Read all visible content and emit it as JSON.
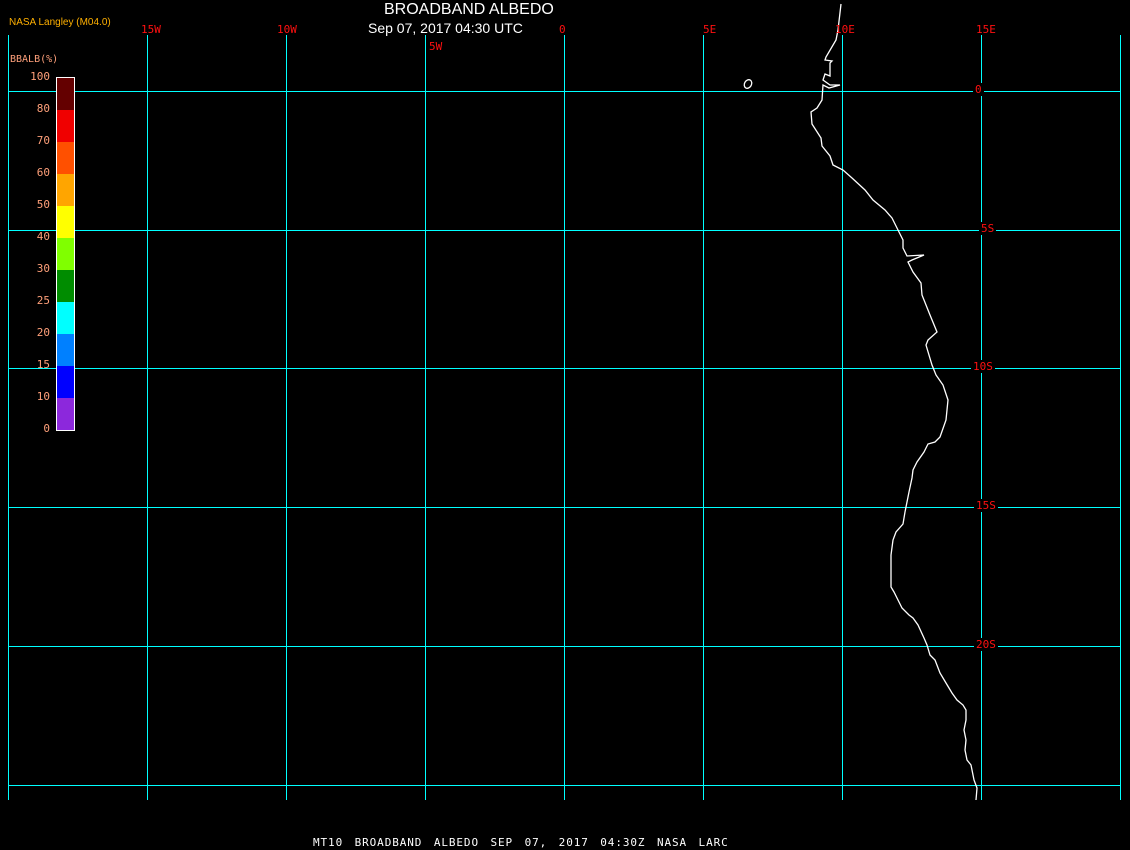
{
  "header": {
    "title": "BROADBAND ALBEDO",
    "subtitle": "Sep 07, 2017 04:30 UTC",
    "credit": "NASA Langley (M04.0)"
  },
  "footer": "MT10  BROADBAND ALBEDO   SEP 07, 2017 04:30Z   NASA LARC",
  "legend": {
    "title": "BBALB(%)",
    "ticks": [
      "100",
      "80",
      "70",
      "60",
      "50",
      "40",
      "30",
      "25",
      "20",
      "15",
      "10",
      "0"
    ],
    "colors": [
      "#640000",
      "#f00000",
      "#ff5000",
      "#ffa500",
      "#ffff00",
      "#80ff00",
      "#008c00",
      "#00ffff",
      "#0080ff",
      "#0000ff",
      "#8c28dc"
    ]
  },
  "map": {
    "longitude_labels": [
      "15W",
      "10W",
      "5W",
      "0",
      "5E",
      "10E",
      "15E"
    ],
    "latitude_labels": [
      "0",
      "5S",
      "10S",
      "15S",
      "20S"
    ],
    "grid_color": "#00ffff",
    "coastline_color": "#ffffff",
    "label_color": "#ff1010"
  }
}
